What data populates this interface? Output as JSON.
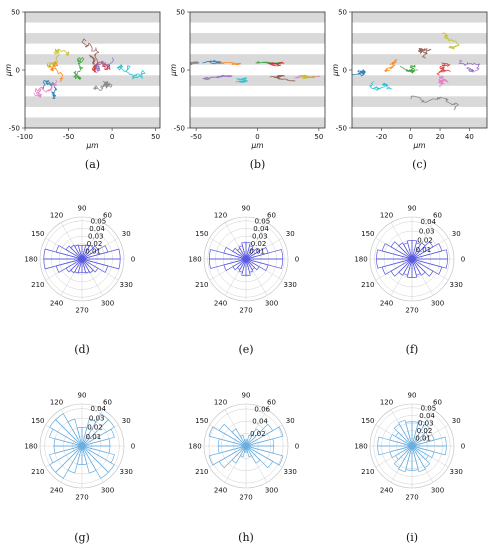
{
  "figure": {
    "track_panels": [
      {
        "label": "(a)",
        "xlabel": "μm",
        "ylabel": "μm",
        "xlim": [
          -100,
          55
        ],
        "ylim": [
          -50,
          50
        ],
        "x_ticks": [
          "-100",
          "-50",
          "0",
          "50"
        ],
        "y_ticks": [
          "50",
          "0",
          "-50"
        ],
        "x_tick_values": [
          -100,
          -50,
          0,
          50
        ],
        "y_tick_values": [
          50,
          0,
          -50
        ],
        "stripes": "gray-horizontal-bands"
      },
      {
        "label": "(b)",
        "xlabel": "μm",
        "ylabel": "μm",
        "xlim": [
          -55,
          55
        ],
        "ylim": [
          -50,
          50
        ],
        "x_ticks": [
          "-50",
          "0",
          "50"
        ],
        "y_ticks": [
          "50",
          "0",
          "-50"
        ],
        "x_tick_values": [
          -50,
          0,
          50
        ],
        "y_tick_values": [
          50,
          0,
          -50
        ],
        "stripes": "gray-horizontal-bands"
      },
      {
        "label": "(c)",
        "xlabel": "μm",
        "ylabel": "μm",
        "xlim": [
          -40,
          52
        ],
        "ylim": [
          -50,
          50
        ],
        "x_ticks": [
          "-20",
          "0",
          "20",
          "40"
        ],
        "y_ticks": [
          "50",
          "0",
          "-50"
        ],
        "x_tick_values": [
          -20,
          0,
          20,
          40
        ],
        "y_tick_values": [
          50,
          0,
          -50
        ],
        "stripes": "gray-horizontal-bands"
      }
    ],
    "polar_panels": [
      {
        "label": "(d)",
        "angle_ticks": [
          "0",
          "30",
          "60",
          "90",
          "120",
          "150",
          "180",
          "210",
          "240",
          "270",
          "300",
          "330"
        ],
        "radial_ticks": [
          "0.01",
          "0.02",
          "0.03",
          "0.04",
          "0.05"
        ],
        "radial_tick_values": [
          0.01,
          0.02,
          0.03,
          0.04,
          0.05
        ],
        "rmax": 0.055,
        "color": "#5858e0"
      },
      {
        "label": "(e)",
        "angle_ticks": [
          "0",
          "30",
          "60",
          "90",
          "120",
          "150",
          "180",
          "210",
          "240",
          "270",
          "300",
          "330"
        ],
        "radial_ticks": [
          "0.01",
          "0.02",
          "0.03",
          "0.04",
          "0.05"
        ],
        "radial_tick_values": [
          0.01,
          0.02,
          0.03,
          0.04,
          0.05
        ],
        "rmax": 0.055,
        "color": "#5858e0"
      },
      {
        "label": "(f)",
        "angle_ticks": [
          "0",
          "30",
          "60",
          "90",
          "120",
          "150",
          "180",
          "210",
          "240",
          "270",
          "300",
          "330"
        ],
        "radial_ticks": [
          "0.01",
          "0.02",
          "0.03",
          "0.04"
        ],
        "radial_tick_values": [
          0.01,
          0.02,
          0.03,
          0.04
        ],
        "rmax": 0.045,
        "color": "#5858e0"
      },
      {
        "label": "(g)",
        "angle_ticks": [
          "0",
          "30",
          "60",
          "90",
          "120",
          "150",
          "180",
          "210",
          "240",
          "270",
          "300",
          "330"
        ],
        "radial_ticks": [
          "0.01",
          "0.02",
          "0.03",
          "0.04"
        ],
        "radial_tick_values": [
          0.01,
          0.02,
          0.03,
          0.04
        ],
        "rmax": 0.045,
        "color": "#6aaee0"
      },
      {
        "label": "(h)",
        "angle_ticks": [
          "0",
          "30",
          "60",
          "90",
          "120",
          "150",
          "180",
          "210",
          "240",
          "270",
          "300",
          "330"
        ],
        "radial_ticks": [
          "0.02",
          "0.04",
          "0.06"
        ],
        "radial_tick_values": [
          0.02,
          0.04,
          0.06
        ],
        "rmax": 0.068,
        "color": "#6aaee0"
      },
      {
        "label": "(i)",
        "angle_ticks": [
          "0",
          "30",
          "60",
          "90",
          "120",
          "150",
          "180",
          "210",
          "240",
          "270",
          "300",
          "330"
        ],
        "radial_ticks": [
          "0.01",
          "0.02",
          "0.03",
          "0.04",
          "0.05"
        ],
        "radial_tick_values": [
          0.01,
          0.02,
          0.03,
          0.04,
          0.05
        ],
        "rmax": 0.055,
        "color": "#6aaee0"
      }
    ]
  },
  "chart_data": [
    {
      "type": "polar_histogram",
      "panel": "(d)",
      "bin_width_deg": 15,
      "bin_centers_deg": [
        7.5,
        22.5,
        37.5,
        52.5,
        67.5,
        82.5,
        97.5,
        112.5,
        127.5,
        142.5,
        157.5,
        172.5,
        187.5,
        202.5,
        217.5,
        232.5,
        247.5,
        262.5,
        277.5,
        292.5,
        307.5,
        322.5,
        337.5,
        352.5
      ],
      "values": [
        0.05,
        0.035,
        0.024,
        0.021,
        0.019,
        0.018,
        0.018,
        0.019,
        0.021,
        0.024,
        0.035,
        0.05,
        0.05,
        0.035,
        0.024,
        0.021,
        0.019,
        0.018,
        0.018,
        0.019,
        0.021,
        0.024,
        0.035,
        0.05
      ]
    },
    {
      "type": "polar_histogram",
      "panel": "(e)",
      "bin_width_deg": 15,
      "bin_centers_deg": [
        7.5,
        22.5,
        37.5,
        52.5,
        67.5,
        82.5,
        97.5,
        112.5,
        127.5,
        142.5,
        157.5,
        172.5,
        187.5,
        202.5,
        217.5,
        232.5,
        247.5,
        262.5,
        277.5,
        292.5,
        307.5,
        322.5,
        337.5,
        352.5
      ],
      "values": [
        0.048,
        0.03,
        0.02,
        0.016,
        0.018,
        0.022,
        0.022,
        0.018,
        0.016,
        0.02,
        0.03,
        0.048,
        0.048,
        0.03,
        0.02,
        0.016,
        0.018,
        0.022,
        0.022,
        0.018,
        0.016,
        0.02,
        0.03,
        0.048
      ]
    },
    {
      "type": "polar_histogram",
      "panel": "(f)",
      "bin_width_deg": 15,
      "bin_centers_deg": [
        7.5,
        22.5,
        37.5,
        52.5,
        67.5,
        82.5,
        97.5,
        112.5,
        127.5,
        142.5,
        157.5,
        172.5,
        187.5,
        202.5,
        217.5,
        232.5,
        247.5,
        262.5,
        277.5,
        292.5,
        307.5,
        322.5,
        337.5,
        352.5
      ],
      "values": [
        0.038,
        0.033,
        0.026,
        0.02,
        0.018,
        0.02,
        0.02,
        0.018,
        0.02,
        0.026,
        0.033,
        0.038,
        0.038,
        0.033,
        0.026,
        0.02,
        0.018,
        0.02,
        0.02,
        0.018,
        0.02,
        0.026,
        0.033,
        0.038
      ]
    },
    {
      "type": "polar_histogram",
      "panel": "(g)",
      "bin_width_deg": 15,
      "bin_centers_deg": [
        7.5,
        22.5,
        37.5,
        52.5,
        67.5,
        82.5,
        97.5,
        112.5,
        127.5,
        142.5,
        157.5,
        172.5,
        187.5,
        202.5,
        217.5,
        232.5,
        247.5,
        262.5,
        277.5,
        292.5,
        307.5,
        322.5,
        337.5,
        352.5
      ],
      "values": [
        0.03,
        0.036,
        0.04,
        0.04,
        0.03,
        0.02,
        0.02,
        0.03,
        0.04,
        0.04,
        0.036,
        0.03,
        0.03,
        0.036,
        0.04,
        0.04,
        0.03,
        0.02,
        0.02,
        0.03,
        0.04,
        0.04,
        0.036,
        0.03
      ]
    },
    {
      "type": "polar_histogram",
      "panel": "(h)",
      "bin_width_deg": 15,
      "bin_centers_deg": [
        7.5,
        22.5,
        37.5,
        52.5,
        67.5,
        82.5,
        97.5,
        112.5,
        127.5,
        142.5,
        157.5,
        172.5,
        187.5,
        202.5,
        217.5,
        232.5,
        247.5,
        262.5,
        277.5,
        292.5,
        307.5,
        322.5,
        337.5,
        352.5
      ],
      "values": [
        0.045,
        0.062,
        0.05,
        0.032,
        0.018,
        0.01,
        0.01,
        0.018,
        0.032,
        0.05,
        0.062,
        0.045,
        0.045,
        0.062,
        0.05,
        0.032,
        0.018,
        0.01,
        0.01,
        0.018,
        0.032,
        0.05,
        0.062,
        0.045
      ]
    },
    {
      "type": "polar_histogram",
      "panel": "(i)",
      "bin_width_deg": 15,
      "bin_centers_deg": [
        7.5,
        22.5,
        37.5,
        52.5,
        67.5,
        82.5,
        97.5,
        112.5,
        127.5,
        142.5,
        157.5,
        172.5,
        187.5,
        202.5,
        217.5,
        232.5,
        247.5,
        262.5,
        277.5,
        292.5,
        307.5,
        322.5,
        337.5,
        352.5
      ],
      "values": [
        0.045,
        0.03,
        0.025,
        0.033,
        0.035,
        0.032,
        0.032,
        0.035,
        0.033,
        0.025,
        0.03,
        0.045,
        0.045,
        0.03,
        0.025,
        0.033,
        0.035,
        0.032,
        0.032,
        0.035,
        0.033,
        0.025,
        0.03,
        0.045
      ]
    }
  ]
}
